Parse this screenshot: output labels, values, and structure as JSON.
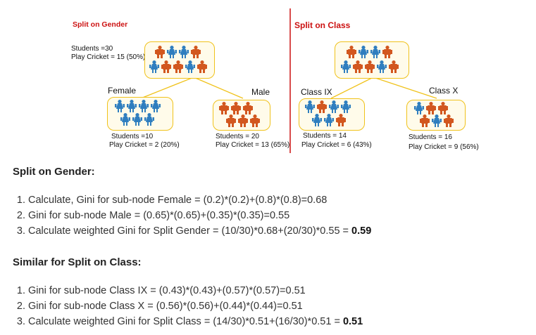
{
  "diagram": {
    "gender": {
      "title": "Split on Gender",
      "root": {
        "students": "Students =30",
        "play": "Play Cricket = 15 (50%)"
      },
      "female": {
        "label": "Female",
        "students": "Students =10",
        "play": "Play Cricket = 2 (20%)"
      },
      "male": {
        "label": "Male",
        "students": "Students = 20",
        "play": "Play Cricket = 13 (65%)"
      }
    },
    "class": {
      "title": "Split on Class",
      "ix": {
        "label": "Class IX",
        "students": "Students = 14",
        "play": "Play Cricket = 6 (43%)"
      },
      "x": {
        "label": "Class X",
        "students": "Students = 16",
        "play": "Play Cricket = 9 (56%)"
      }
    },
    "colors": {
      "orange": "#d2571f",
      "blue": "#2f7ebf",
      "node_border": "#f0c21b",
      "divider": "#cc1111",
      "title": "#cc1111"
    }
  },
  "text": {
    "gender_heading": "Split on Gender:",
    "gender_steps": [
      {
        "text": "Calculate, Gini for sub-node Female = (0.2)*(0.2)+(0.8)*(0.8)=0.68",
        "bold": ""
      },
      {
        "text": "Gini for sub-node Male = (0.65)*(0.65)+(0.35)*(0.35)=0.55",
        "bold": ""
      },
      {
        "text": "Calculate weighted Gini for Split Gender = (10/30)*0.68+(20/30)*0.55 = ",
        "bold": "0.59"
      }
    ],
    "class_heading": "Similar for Split on Class:",
    "class_steps": [
      {
        "text": "Gini for sub-node Class IX = (0.43)*(0.43)+(0.57)*(0.57)=0.51",
        "bold": ""
      },
      {
        "text": "Gini for sub-node Class X = (0.56)*(0.56)+(0.44)*(0.44)=0.51",
        "bold": ""
      },
      {
        "text": "Calculate weighted Gini for Split Class = (14/30)*0.51+(16/30)*0.51 = ",
        "bold": "0.51"
      }
    ]
  }
}
